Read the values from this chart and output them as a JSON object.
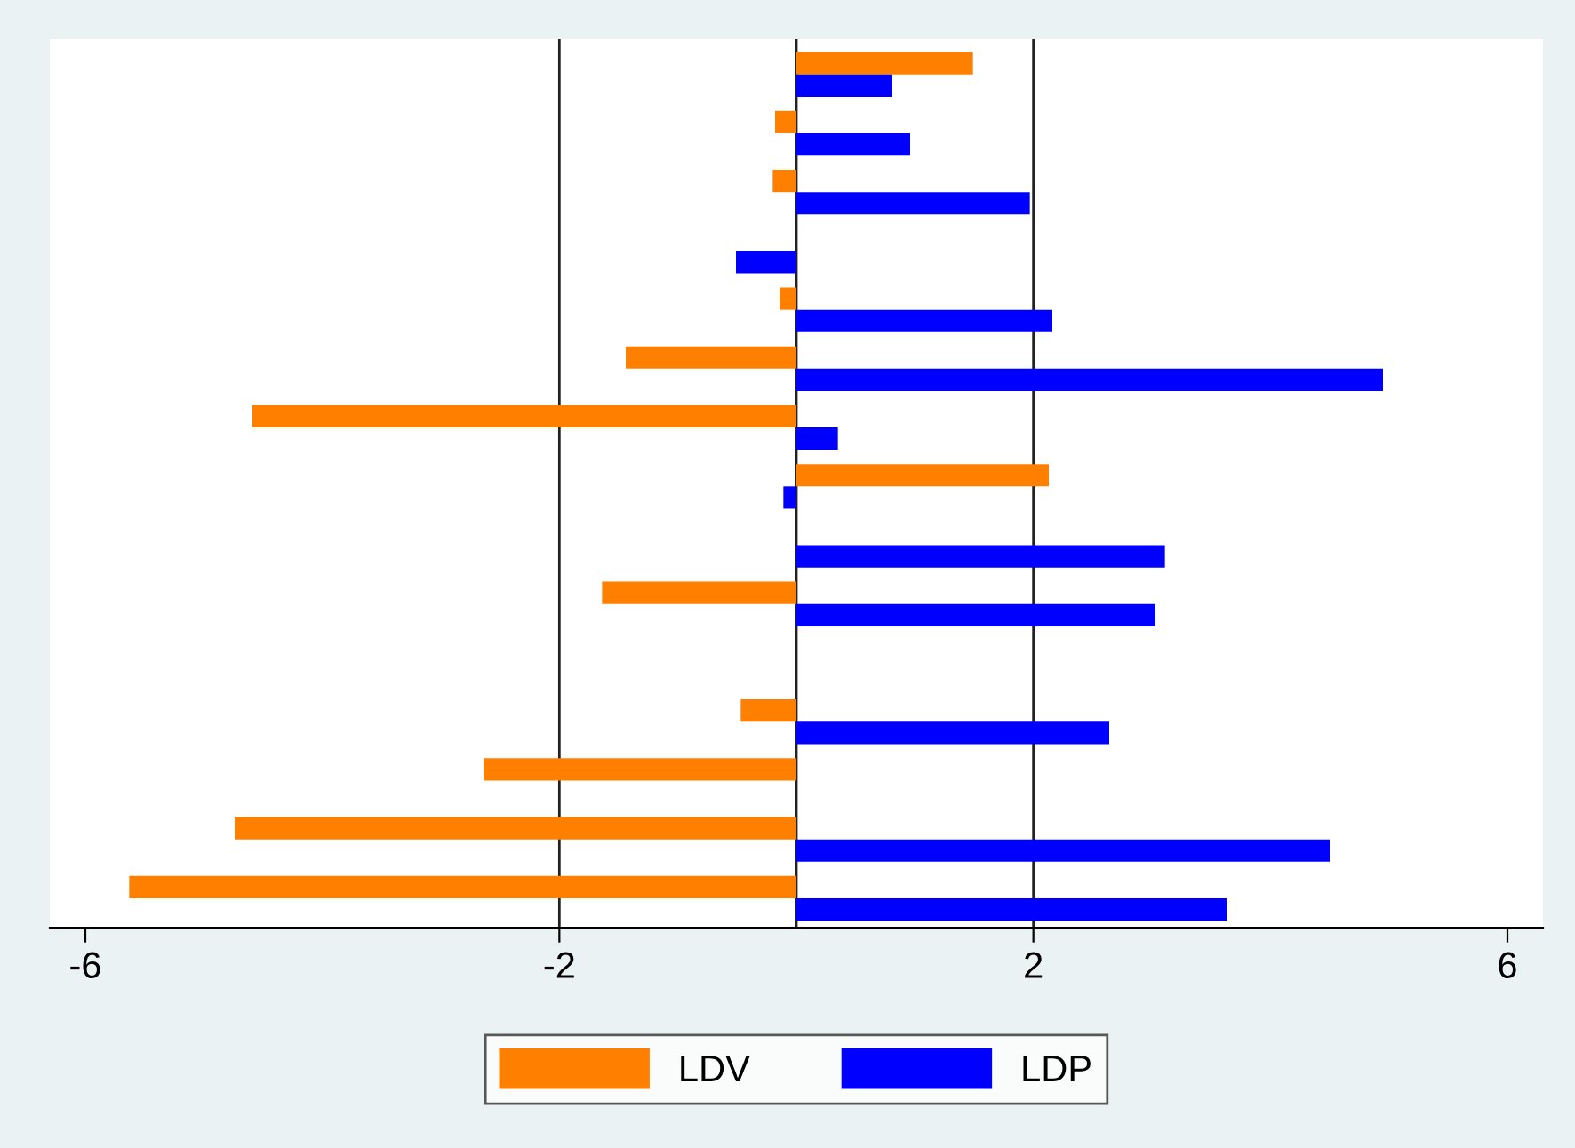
{
  "chart_data": {
    "type": "bar",
    "orientation": "horizontal",
    "categories": [
      null,
      null,
      null,
      null,
      null,
      null,
      null,
      null,
      null,
      null,
      null,
      null,
      null,
      null,
      null
    ],
    "series": [
      {
        "name": "LDV",
        "color": "#ff8000",
        "values": [
          1.49,
          -0.18,
          -0.2,
          null,
          -0.14,
          -1.44,
          -4.59,
          2.13,
          null,
          -1.64,
          null,
          -0.47,
          -2.64,
          -4.74,
          -5.63
        ]
      },
      {
        "name": "LDP",
        "color": "#0000ff",
        "values": [
          0.81,
          0.96,
          1.97,
          -0.51,
          2.16,
          4.95,
          0.35,
          -0.11,
          3.11,
          3.03,
          null,
          2.64,
          null,
          4.5,
          3.63
        ]
      }
    ],
    "xlim": [
      -6.3,
      6.3
    ],
    "xticks": [
      -6,
      -2,
      2,
      6
    ],
    "ref_lines": [
      {
        "axis": "x",
        "value": -2
      },
      {
        "axis": "x",
        "value": 0
      },
      {
        "axis": "x",
        "value": 2
      }
    ],
    "tick_labels": "x",
    "legend": "bottom",
    "grid": false
  }
}
